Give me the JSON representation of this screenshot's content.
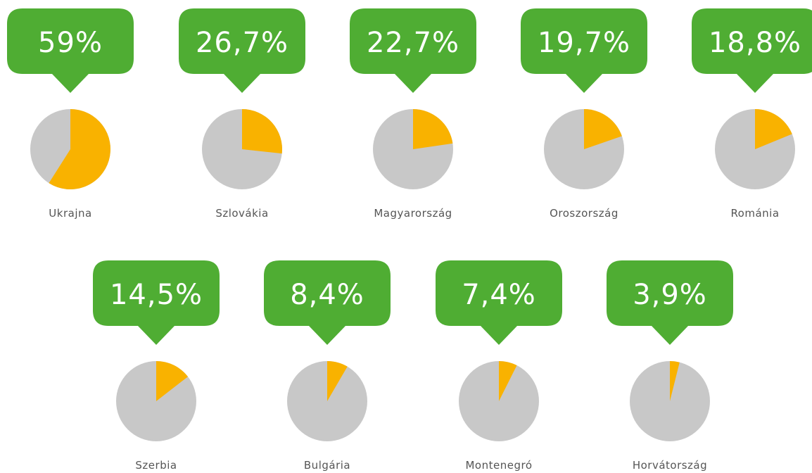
{
  "chart_data": {
    "type": "pie",
    "categories": [
      "Ukrajna",
      "Szlovákia",
      "Magyarország",
      "Oroszország",
      "Románia",
      "Szerbia",
      "Bulgária",
      "Montenegró",
      "Horvátország"
    ],
    "values": [
      59,
      26.7,
      22.7,
      19.7,
      18.8,
      14.5,
      8.4,
      7.4,
      3.9
    ],
    "value_labels": [
      "59%",
      "26,7%",
      "22,7%",
      "19,7%",
      "18,8%",
      "14,5%",
      "8,4%",
      "7,4%",
      "3,9%"
    ],
    "color": "#f9b200",
    "remainder_color": "#c8c8c8",
    "callout_color": "#4fad33"
  }
}
